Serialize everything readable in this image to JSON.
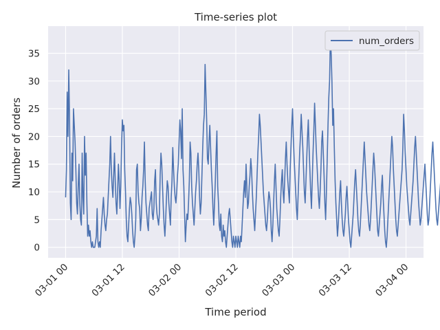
{
  "chart_data": {
    "type": "line",
    "title": "Time-series plot",
    "xlabel": "Time period",
    "ylabel": "Number of orders",
    "x_ticks": [
      "03-01 00",
      "03-01 12",
      "03-02 00",
      "03-02 12",
      "03-03 00",
      "03-03 12",
      "03-04 00"
    ],
    "y_ticks": [
      "0",
      "5",
      "10",
      "15",
      "20",
      "25",
      "30",
      "35"
    ],
    "xlim": [
      "2016-02-29T20:18:00",
      "2016-03-04T03:42:00"
    ],
    "ylim": [
      -1.9,
      39.9
    ],
    "x_start": "2016-03-01T00:00:00",
    "x_step_minutes": 10,
    "grid": true,
    "legend_position": "top-right",
    "series": [
      {
        "name": "num_orders",
        "color": "#4c72b0",
        "values": [
          9,
          14,
          28,
          20,
          32,
          23,
          8,
          5,
          17,
          12,
          25,
          22,
          19,
          14,
          8,
          6,
          11,
          15,
          8,
          5,
          4,
          17,
          9,
          6,
          20,
          13,
          17,
          8,
          2,
          4,
          2,
          3,
          1,
          0,
          1,
          0,
          0,
          0,
          1,
          2,
          7,
          1,
          0,
          1,
          0,
          3,
          5,
          7,
          9,
          6,
          4,
          3,
          5,
          6,
          9,
          12,
          15,
          20,
          14,
          11,
          9,
          13,
          17,
          12,
          8,
          6,
          10,
          15,
          12,
          7,
          11,
          18,
          23,
          21,
          22,
          14,
          10,
          5,
          2,
          1,
          4,
          7,
          9,
          8,
          6,
          3,
          1,
          0,
          2,
          5,
          14,
          15,
          10,
          8,
          7,
          3,
          5,
          9,
          11,
          14,
          19,
          12,
          8,
          6,
          4,
          3,
          7,
          8,
          9,
          10,
          6,
          5,
          7,
          12,
          14,
          8,
          6,
          5,
          4,
          6,
          13,
          17,
          15,
          11,
          7,
          4,
          2,
          5,
          9,
          12,
          11,
          8,
          6,
          4,
          9,
          12,
          18,
          14,
          11,
          9,
          8,
          10,
          13,
          15,
          19,
          23,
          21,
          16,
          25,
          14,
          11,
          6,
          1,
          4,
          6,
          5,
          8,
          12,
          19,
          17,
          11,
          8,
          6,
          4,
          7,
          10,
          12,
          15,
          17,
          14,
          9,
          6,
          8,
          13,
          18,
          22,
          24,
          33,
          28,
          23,
          16,
          15,
          19,
          22,
          18,
          14,
          11,
          7,
          4,
          8,
          12,
          17,
          21,
          11,
          8,
          4,
          3,
          6,
          2,
          1,
          4,
          2,
          3,
          1,
          0,
          2,
          4,
          6,
          7,
          5,
          3,
          1,
          0,
          2,
          1,
          0,
          2,
          1,
          0,
          2,
          1,
          0,
          2,
          1,
          4,
          7,
          10,
          12,
          9,
          15,
          11,
          7,
          8,
          11,
          13,
          16,
          14,
          10,
          7,
          5,
          3,
          6,
          9,
          13,
          17,
          20,
          24,
          22,
          19,
          16,
          13,
          10,
          8,
          6,
          4,
          3,
          5,
          8,
          10,
          9,
          7,
          3,
          1,
          4,
          8,
          12,
          15,
          11,
          7,
          5,
          3,
          2,
          5,
          9,
          12,
          14,
          10,
          8,
          12,
          16,
          19,
          15,
          12,
          10,
          8,
          14,
          18,
          22,
          25,
          20,
          16,
          13,
          10,
          7,
          5,
          9,
          13,
          17,
          20,
          24,
          21,
          18,
          14,
          10,
          8,
          12,
          16,
          20,
          23,
          18,
          14,
          10,
          7,
          12,
          17,
          21,
          26,
          22,
          18,
          15,
          12,
          9,
          7,
          10,
          14,
          19,
          21,
          17,
          13,
          8,
          5,
          10,
          16,
          22,
          27,
          30,
          38,
          35,
          30,
          22,
          25,
          18,
          12,
          8,
          5,
          2,
          4,
          7,
          10,
          12,
          8,
          5,
          3,
          2,
          4,
          6,
          9,
          11,
          8,
          5,
          3,
          1,
          0,
          2,
          4,
          6,
          9,
          12,
          14,
          11,
          8,
          5,
          3,
          2,
          4,
          7,
          10,
          13,
          16,
          19,
          16,
          13,
          10,
          8,
          6,
          4,
          3,
          5,
          8,
          11,
          14,
          17,
          15,
          12,
          9,
          6,
          3,
          2,
          4,
          6,
          8,
          11,
          13,
          9,
          6,
          3,
          1,
          0,
          2,
          5,
          8,
          11,
          14,
          17,
          20,
          18,
          14,
          11,
          8,
          5,
          3,
          2,
          4,
          6,
          8,
          10,
          12,
          14,
          18,
          24,
          21,
          17,
          14,
          11,
          9,
          7,
          5,
          4,
          6,
          8,
          10,
          12,
          15,
          18,
          20,
          17,
          14,
          11,
          8,
          6,
          4,
          5,
          7,
          9,
          11,
          13,
          15,
          12,
          9,
          6,
          4,
          5,
          8,
          11,
          14,
          17,
          19,
          16,
          13,
          10,
          7,
          5,
          4,
          6,
          8,
          10,
          12,
          14,
          16,
          18,
          15,
          12,
          9,
          6,
          4,
          3,
          5,
          7,
          9,
          11,
          13,
          10,
          7,
          4,
          2,
          4,
          8,
          12,
          10,
          6
        ]
      }
    ]
  }
}
